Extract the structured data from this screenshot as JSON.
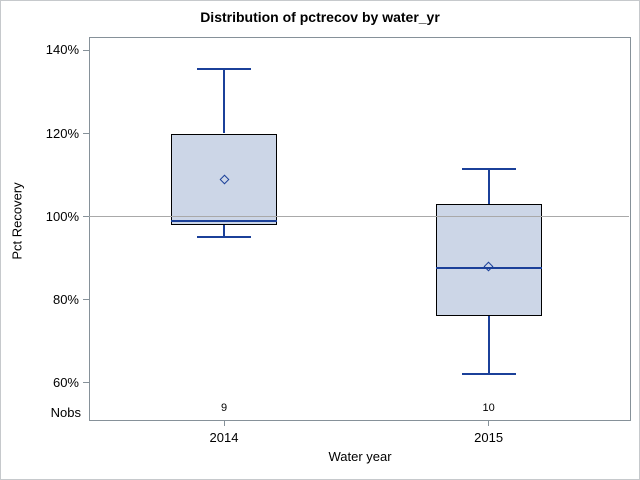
{
  "chart_data": {
    "type": "box",
    "title": "Distribution of pctrecov by water_yr",
    "xlabel": "Water year",
    "ylabel": "Pct Recovery",
    "categories": [
      "2014",
      "2015"
    ],
    "nobs_label": "Nobs",
    "nobs": [
      "9",
      "10"
    ],
    "yticks": [
      140,
      120,
      100,
      80,
      60
    ],
    "ytick_suffix": "%",
    "ylim": [
      51,
      143
    ],
    "refline": 100,
    "grid": false,
    "legend": "none",
    "boxes": [
      {
        "category": "2014",
        "whisker_low": 95,
        "q1": 98,
        "median": 99,
        "q3": 120,
        "whisker_high": 135.5,
        "mean": 109,
        "nobs": 9
      },
      {
        "category": "2015",
        "whisker_low": 62,
        "q1": 76,
        "median": 87.5,
        "q3": 103,
        "whisker_high": 111.5,
        "mean": 88,
        "nobs": 10
      }
    ],
    "colors": {
      "box_fill": "#ccd6e7",
      "box_border": "#000000",
      "whisker": "#1b4099",
      "median": "#1b4099",
      "mean_marker": "#1b4099",
      "refline": "#a9a9a9",
      "frame": "#869199",
      "text": "#000000"
    }
  }
}
